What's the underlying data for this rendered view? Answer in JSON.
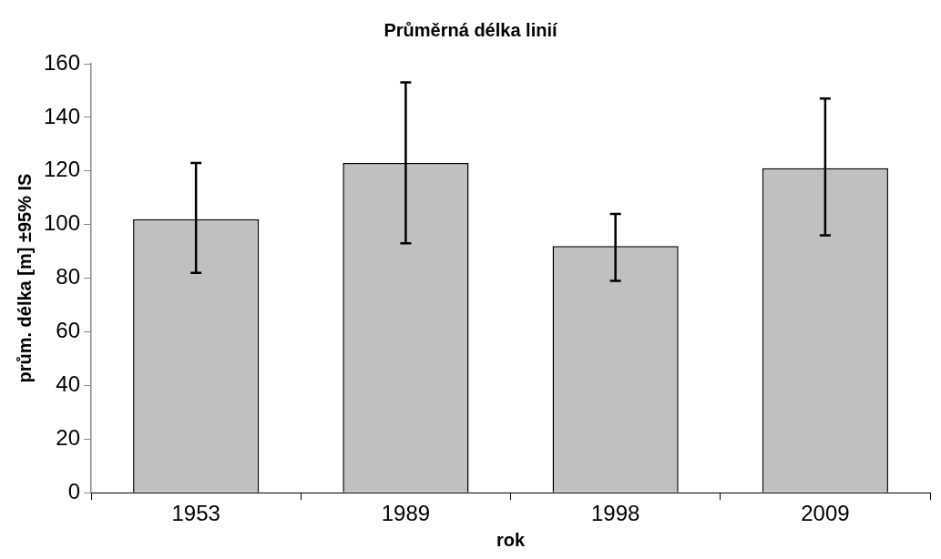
{
  "chart_data": {
    "type": "bar",
    "title": "Průměrná délka linií",
    "xlabel": "rok",
    "ylabel": "prům. délka [m] ±95% IS",
    "categories": [
      "1953",
      "1989",
      "1998",
      "2009"
    ],
    "values": [
      102,
      123,
      92,
      121
    ],
    "errors": [
      [
        82,
        123
      ],
      [
        93,
        153
      ],
      [
        79,
        104
      ],
      [
        96,
        147
      ]
    ],
    "color": "#c0c0c0",
    "ylim": [
      0,
      160
    ],
    "yticks": [
      0,
      20,
      40,
      60,
      80,
      100,
      120,
      140,
      160
    ]
  }
}
